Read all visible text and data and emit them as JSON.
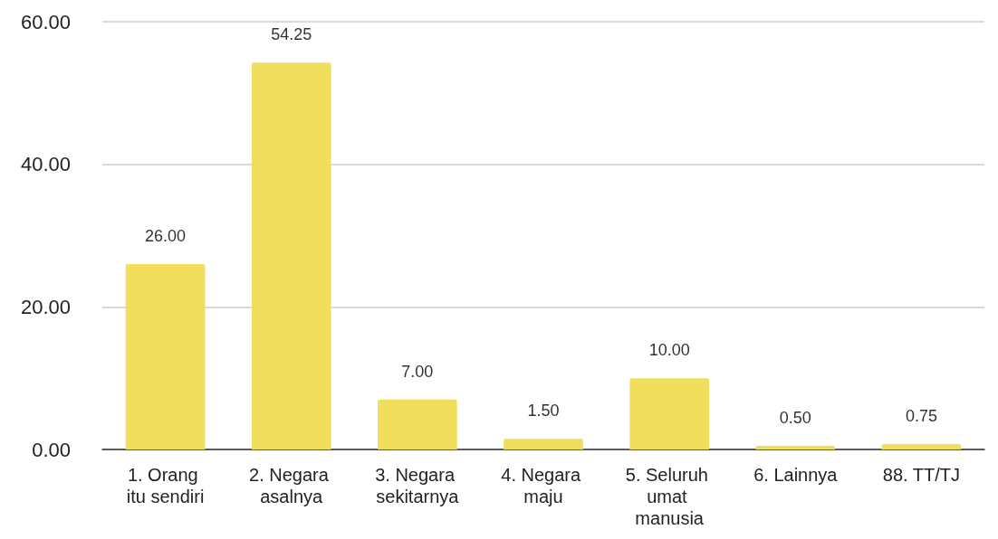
{
  "chart_data": {
    "type": "bar",
    "categories": [
      "1. Orang itu sendiri",
      "2. Negara asalnya",
      "3. Negara sekitarnya",
      "4. Negara maju",
      "5. Seluruh umat manusia",
      "6. Lainnya",
      "88. TT/TJ"
    ],
    "values": [
      26,
      54.25,
      7,
      1.5,
      10,
      0.5,
      0.75
    ],
    "value_labels": [
      "26.00",
      "54.25",
      "7.00",
      "1.50",
      "10.00",
      "0.50",
      "0.75"
    ],
    "color": "#f1de5c",
    "ylim": [
      0,
      60
    ],
    "yticks": [
      {
        "value": 0,
        "label": "0.00"
      },
      {
        "value": 20,
        "label": "20.00"
      },
      {
        "value": 40,
        "label": "40.00"
      },
      {
        "value": 60,
        "label": "60.00"
      }
    ],
    "grid": "y"
  }
}
